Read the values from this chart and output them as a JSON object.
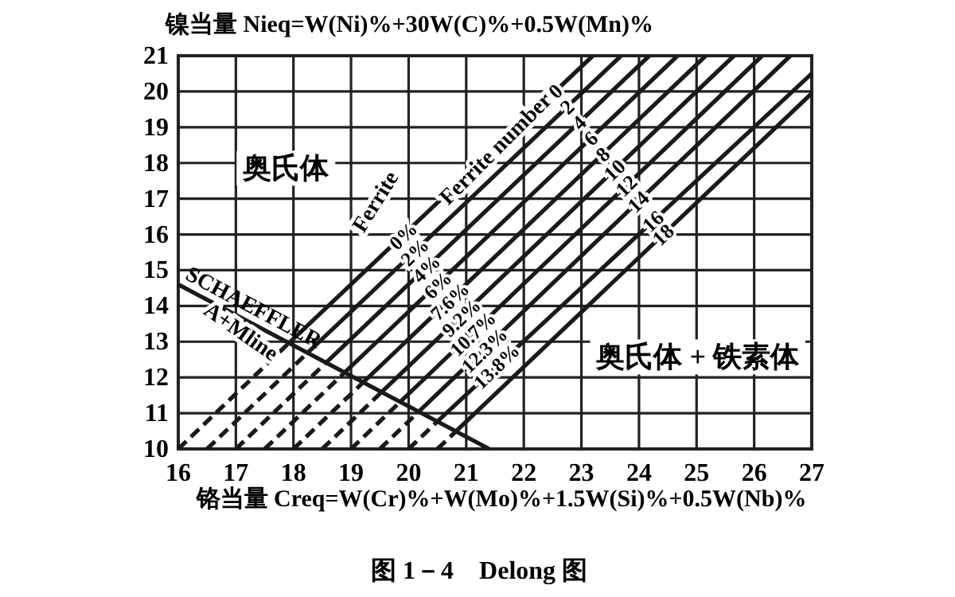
{
  "chart_data": {
    "type": "line",
    "xlabel": "铬当量 Creq=W(Cr)%+W(Mo)%+1.5W(Si)%+0.5W(Nb)%",
    "ylabel": "镍当量 Nieq=W(Ni)%+30W(C)%+0.5W(Mn)%",
    "xlim": [
      16,
      27
    ],
    "ylim": [
      10,
      21
    ],
    "xticks": [
      16,
      17,
      18,
      19,
      20,
      21,
      22,
      23,
      24,
      25,
      26,
      27
    ],
    "yticks": [
      10,
      11,
      12,
      13,
      14,
      15,
      16,
      17,
      18,
      19,
      20,
      21
    ],
    "grid": true,
    "marker": "none",
    "series": [
      {
        "name": "0",
        "color": "#1a1a1a",
        "x": [
          17.92,
          23.2
        ],
        "values": [
          12.96,
          21
        ]
      },
      {
        "name": "2",
        "color": "#1a1a1a",
        "x": [
          18.24,
          23.69
        ],
        "values": [
          12.68,
          21
        ]
      },
      {
        "name": "4",
        "color": "#1a1a1a",
        "x": [
          18.57,
          24.18
        ],
        "values": [
          12.42,
          21
        ]
      },
      {
        "name": "6",
        "color": "#1a1a1a",
        "x": [
          18.89,
          24.67
        ],
        "values": [
          12.14,
          21
        ]
      },
      {
        "name": "8",
        "color": "#1a1a1a",
        "x": [
          19.21,
          25.16
        ],
        "values": [
          11.86,
          21
        ]
      },
      {
        "name": "10",
        "color": "#1a1a1a",
        "x": [
          19.53,
          25.65
        ],
        "values": [
          11.59,
          21
        ]
      },
      {
        "name": "12",
        "color": "#1a1a1a",
        "x": [
          19.85,
          26.14
        ],
        "values": [
          11.31,
          21
        ]
      },
      {
        "name": "14",
        "color": "#1a1a1a",
        "x": [
          20.18,
          26.63
        ],
        "values": [
          11.05,
          21
        ]
      },
      {
        "name": "16",
        "color": "#1a1a1a",
        "x": [
          20.5,
          27
        ],
        "values": [
          10.77,
          20.5
        ]
      },
      {
        "name": "18",
        "color": "#1a1a1a",
        "x": [
          20.82,
          27
        ],
        "values": [
          10.49,
          19.95
        ]
      },
      {
        "color": "#1a1a1a",
        "line_style": "dashed",
        "x": [
          16,
          17.92
        ],
        "values": [
          10,
          12.96
        ]
      },
      {
        "color": "#1a1a1a",
        "line_style": "dashed",
        "x": [
          16.5,
          18.24
        ],
        "values": [
          10,
          12.68
        ]
      },
      {
        "color": "#1a1a1a",
        "line_style": "dashed",
        "x": [
          17,
          18.57
        ],
        "values": [
          10,
          12.42
        ]
      },
      {
        "color": "#1a1a1a",
        "line_style": "dashed",
        "x": [
          17.5,
          18.89
        ],
        "values": [
          10,
          12.14
        ]
      },
      {
        "color": "#1a1a1a",
        "line_style": "dashed",
        "x": [
          18,
          19.21
        ],
        "values": [
          10,
          11.86
        ]
      },
      {
        "color": "#1a1a1a",
        "line_style": "dashed",
        "x": [
          18.5,
          19.53
        ],
        "values": [
          10,
          11.59
        ]
      },
      {
        "color": "#1a1a1a",
        "line_style": "dashed",
        "x": [
          19,
          19.85
        ],
        "values": [
          10,
          11.31
        ]
      },
      {
        "color": "#1a1a1a",
        "line_style": "dashed",
        "x": [
          19.5,
          20.18
        ],
        "values": [
          10,
          11.05
        ]
      },
      {
        "color": "#1a1a1a",
        "line_style": "dashed",
        "x": [
          20,
          20.5
        ],
        "values": [
          10,
          10.77
        ]
      },
      {
        "color": "#1a1a1a",
        "line_style": "dashed",
        "x": [
          20.5,
          20.82
        ],
        "values": [
          10,
          10.49
        ]
      },
      {
        "name": "SCHAEFFLER",
        "color": "#1a1a1a",
        "x": [
          16,
          21.4
        ],
        "values": [
          14.6,
          10
        ]
      }
    ],
    "annotations": [
      {
        "text": "0%",
        "x": 19.9,
        "y": 15.97
      },
      {
        "text": "2%",
        "x": 20.1,
        "y": 15.51
      },
      {
        "text": "4%",
        "x": 20.3,
        "y": 15.05
      },
      {
        "text": "6%",
        "x": 20.5,
        "y": 14.59
      },
      {
        "text": "7.6%",
        "x": 20.71,
        "y": 14.14
      },
      {
        "text": "9.2%",
        "x": 20.91,
        "y": 13.68
      },
      {
        "text": "10.7%",
        "x": 21.11,
        "y": 13.23
      },
      {
        "text": "12.3%",
        "x": 21.31,
        "y": 12.77
      },
      {
        "text": "13.8%",
        "x": 21.52,
        "y": 12.32
      },
      "Ferrite",
      "Ferrite number",
      "A+Mline",
      "奥氏体",
      "奥氏体 + 铁素体",
      "图 1－4　Delong 图"
    ]
  }
}
